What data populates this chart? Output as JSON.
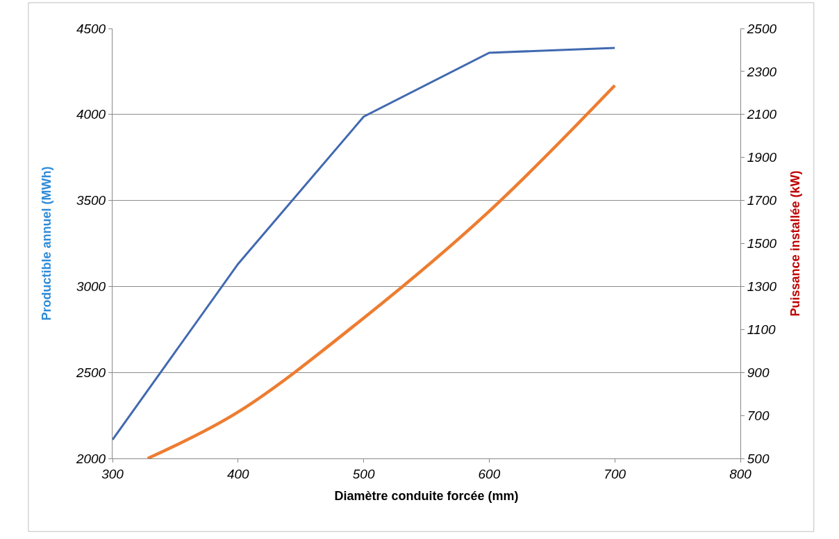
{
  "chart_data": {
    "type": "line",
    "xlabel": "Diamètre conduite forcée (mm)",
    "ylabel": "Productible annuel (MWh)",
    "y2label": "Puissance installée (kW)",
    "xlim": [
      300,
      800
    ],
    "xticks": [
      300,
      400,
      500,
      600,
      700,
      800
    ],
    "ylim": [
      2000,
      4500
    ],
    "yticks": [
      2000,
      2500,
      3000,
      3500,
      4000,
      4500
    ],
    "y2lim": [
      500,
      2500
    ],
    "y2ticks": [
      500,
      700,
      900,
      1100,
      1300,
      1500,
      1700,
      1900,
      2100,
      2300,
      2500
    ],
    "grid": "y",
    "legend": false,
    "marker": "none",
    "line_style": "solid",
    "series": [
      {
        "color": "#4169b0",
        "x": [
          300,
          400,
          500,
          600,
          700
        ],
        "values": [
          2109,
          3131,
          3987,
          4359,
          4387
        ]
      },
      {
        "color": "#ed7d31",
        "axis": "y2",
        "x": [
          328,
          400,
          500,
          600,
          700
        ],
        "values": [
          500,
          716,
          1153,
          1650,
          2235
        ]
      }
    ]
  }
}
